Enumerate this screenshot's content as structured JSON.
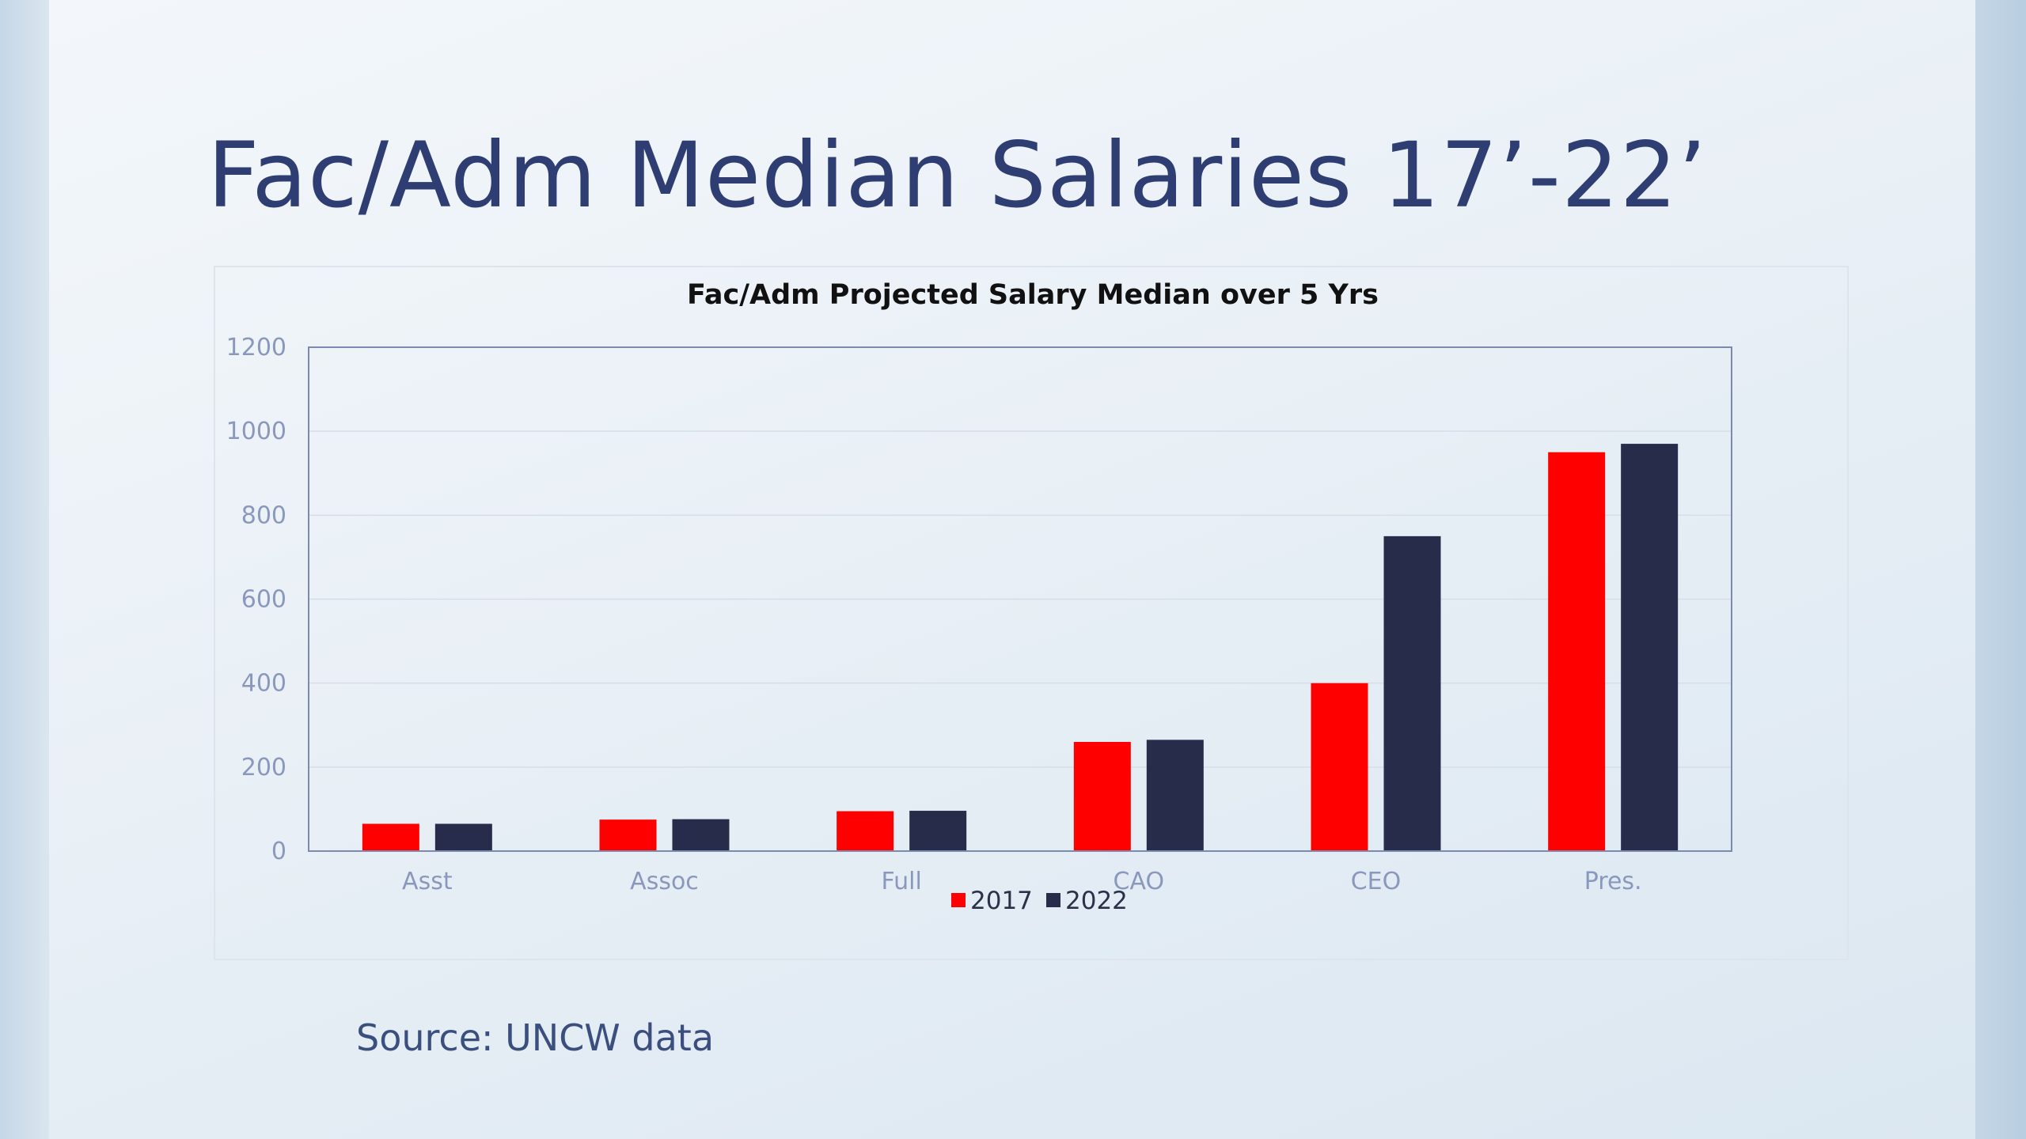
{
  "slide": {
    "title": "Fac/Adm Median Salaries 17’-22’",
    "source": "Source:  UNCW data"
  },
  "chart_data": {
    "type": "bar",
    "title": "Fac/Adm Projected Salary Median over 5 Yrs",
    "xlabel": "",
    "ylabel": "",
    "categories": [
      "Asst",
      "Assoc",
      "Full",
      "CAO",
      "CEO",
      "Pres."
    ],
    "series": [
      {
        "name": "2017",
        "color": "#ff0000",
        "values": [
          65,
          75,
          95,
          260,
          400,
          950
        ]
      },
      {
        "name": "2022",
        "color": "#262c4a",
        "values": [
          65,
          76,
          96,
          265,
          750,
          970
        ]
      }
    ],
    "ylim": [
      0,
      1200
    ],
    "yticks": [
      0,
      200,
      400,
      600,
      800,
      1000,
      1200
    ],
    "grid": true,
    "legend_position": "bottom"
  }
}
